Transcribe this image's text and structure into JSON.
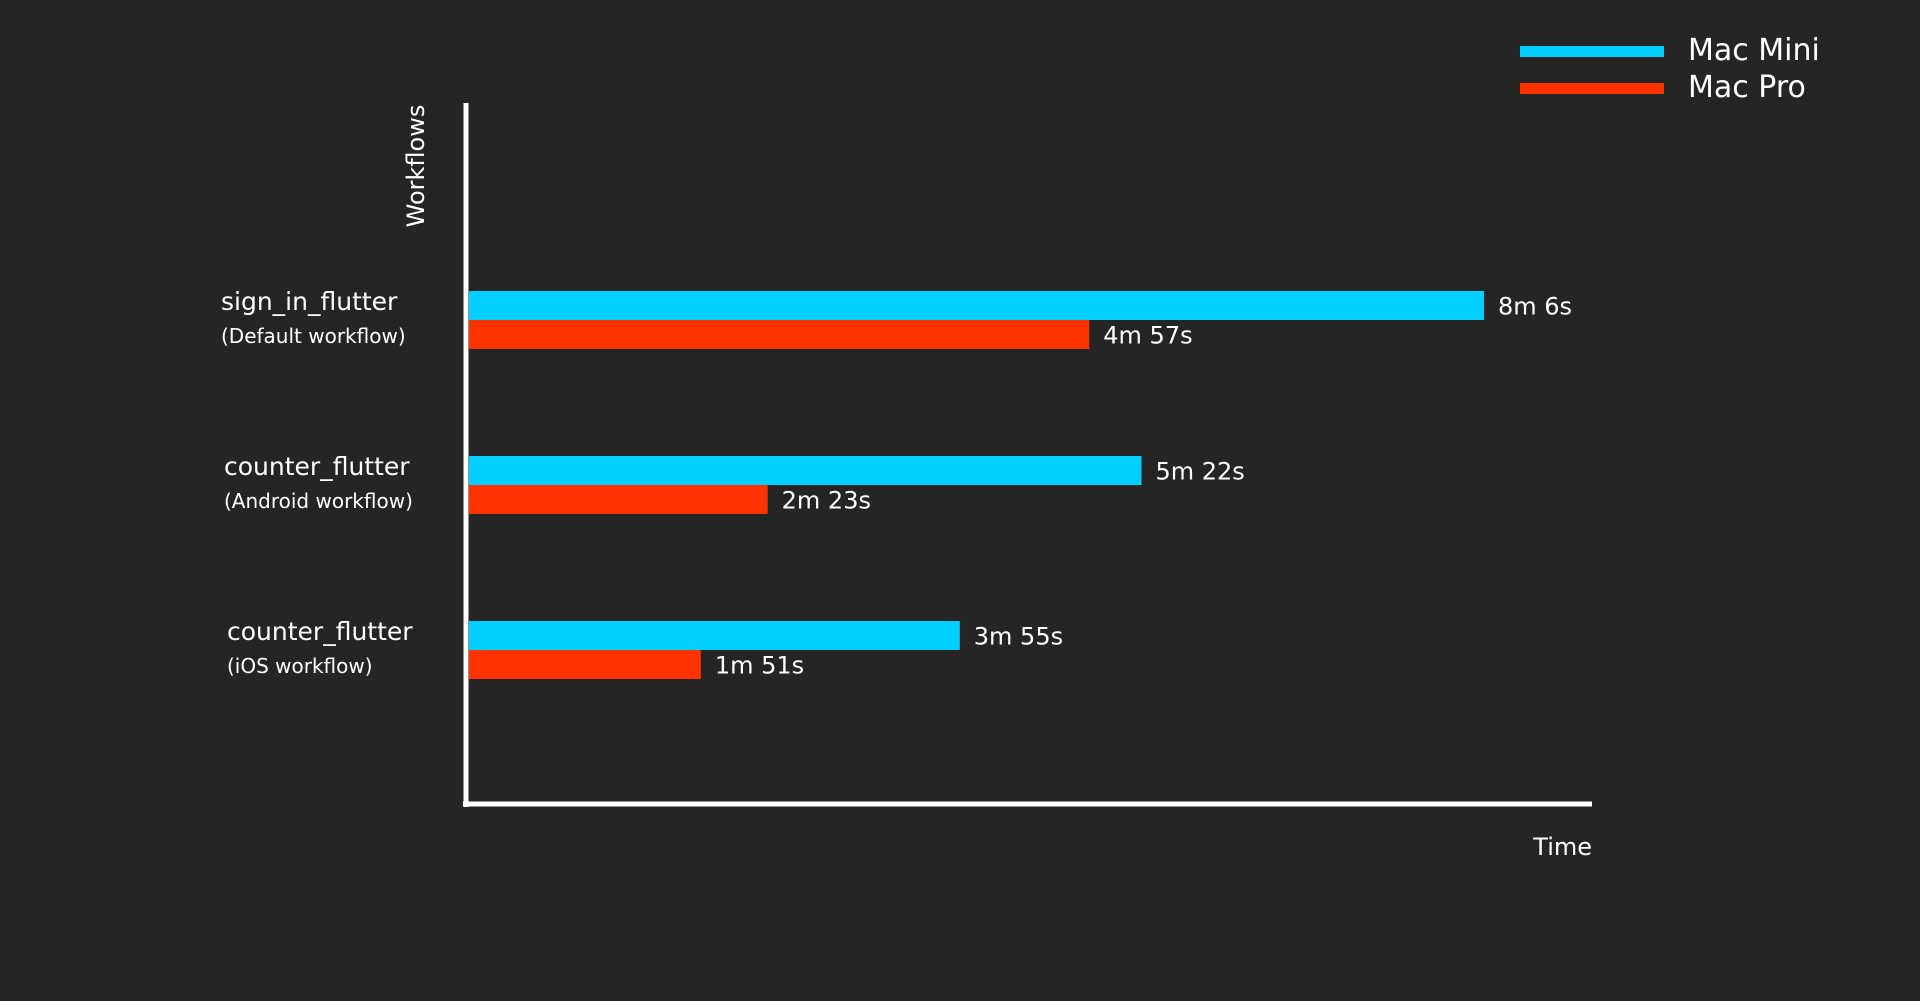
{
  "chart_data": {
    "type": "bar",
    "orientation": "horizontal",
    "ylabel": "Workflows",
    "xlabel": "Time",
    "categories": [
      {
        "name": "sign_in_flutter",
        "subtitle": "(Default workflow)"
      },
      {
        "name": "counter_flutter",
        "subtitle": "(Android workflow)"
      },
      {
        "name": "counter_flutter",
        "subtitle": "(iOS workflow)"
      }
    ],
    "series": [
      {
        "name": "Mac Mini",
        "color": "#00cfff",
        "values": [
          486,
          322,
          235
        ],
        "labels": [
          "8m 6s",
          "5m 22s",
          "3m 55s"
        ]
      },
      {
        "name": "Mac Pro",
        "color": "#ff3300",
        "values": [
          297,
          143,
          111
        ],
        "labels": [
          "4m 57s",
          "2m 23s",
          "1m 51s"
        ]
      }
    ],
    "xlim": [
      0,
      540
    ],
    "legend": "top-right",
    "grid": false,
    "colors": {
      "background": "#252525",
      "axis": "#ffffff",
      "text": "#ffffff"
    }
  }
}
